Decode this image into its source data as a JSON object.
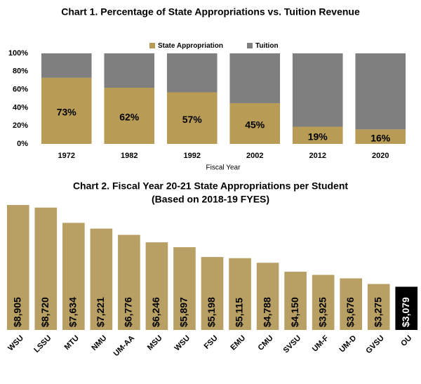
{
  "chart_data": [
    {
      "type": "stacked_bar",
      "title": "Chart 1. Percentage of State Appropriations vs. Tuition Revenue",
      "x_label": "Fiscal Year",
      "categories": [
        "1972",
        "1982",
        "1992",
        "2002",
        "2012",
        "2020"
      ],
      "series": [
        {
          "name": "State Appropriation",
          "color": "#b89c55",
          "values": [
            73,
            62,
            57,
            45,
            19,
            16
          ],
          "value_labels": [
            "73%",
            "62%",
            "57%",
            "45%",
            "19%",
            "16%"
          ]
        },
        {
          "name": "Tuition",
          "color": "#7f7f7f",
          "values": [
            27,
            38,
            43,
            55,
            81,
            84
          ]
        }
      ],
      "ylim": [
        0,
        100
      ],
      "yticks": [
        {
          "value": 0,
          "label": "0%"
        },
        {
          "value": 20,
          "label": "20%"
        },
        {
          "value": 40,
          "label": "40%"
        },
        {
          "value": 60,
          "label": "60%"
        },
        {
          "value": 80,
          "label": "80%"
        },
        {
          "value": 100,
          "label": "100%"
        }
      ],
      "legend": "top"
    },
    {
      "type": "bar",
      "title": "Chart 2. Fiscal Year 20-21 State Appropriations per Student",
      "subtitle": "(Based on 2018-19 FYES)",
      "categories": [
        "WSU",
        "LSSU",
        "MTU",
        "NMU",
        "UM-AA",
        "MSU",
        "WSU",
        "FSU",
        "EMU",
        "CMU",
        "SVSU",
        "UM-F",
        "UM-D",
        "GVSU",
        "OU"
      ],
      "values": [
        8905,
        8720,
        7634,
        7221,
        6776,
        6246,
        5897,
        5198,
        5115,
        4788,
        4150,
        3925,
        3676,
        3275,
        3079
      ],
      "value_labels": [
        "$8,905",
        "$8,720",
        "$7,634",
        "$7,221",
        "$6,776",
        "$6,246",
        "$5,897",
        "$5,198",
        "$5,115",
        "$4,788",
        "$4,150",
        "$3,925",
        "$3,676",
        "$3,275",
        "$3,079"
      ],
      "colors": [
        "#b8a064",
        "#b8a064",
        "#b8a064",
        "#b8a064",
        "#b8a064",
        "#b8a064",
        "#b8a064",
        "#b8a064",
        "#b8a064",
        "#b8a064",
        "#b8a064",
        "#b8a064",
        "#b8a064",
        "#b8a064",
        "#000000"
      ]
    }
  ]
}
